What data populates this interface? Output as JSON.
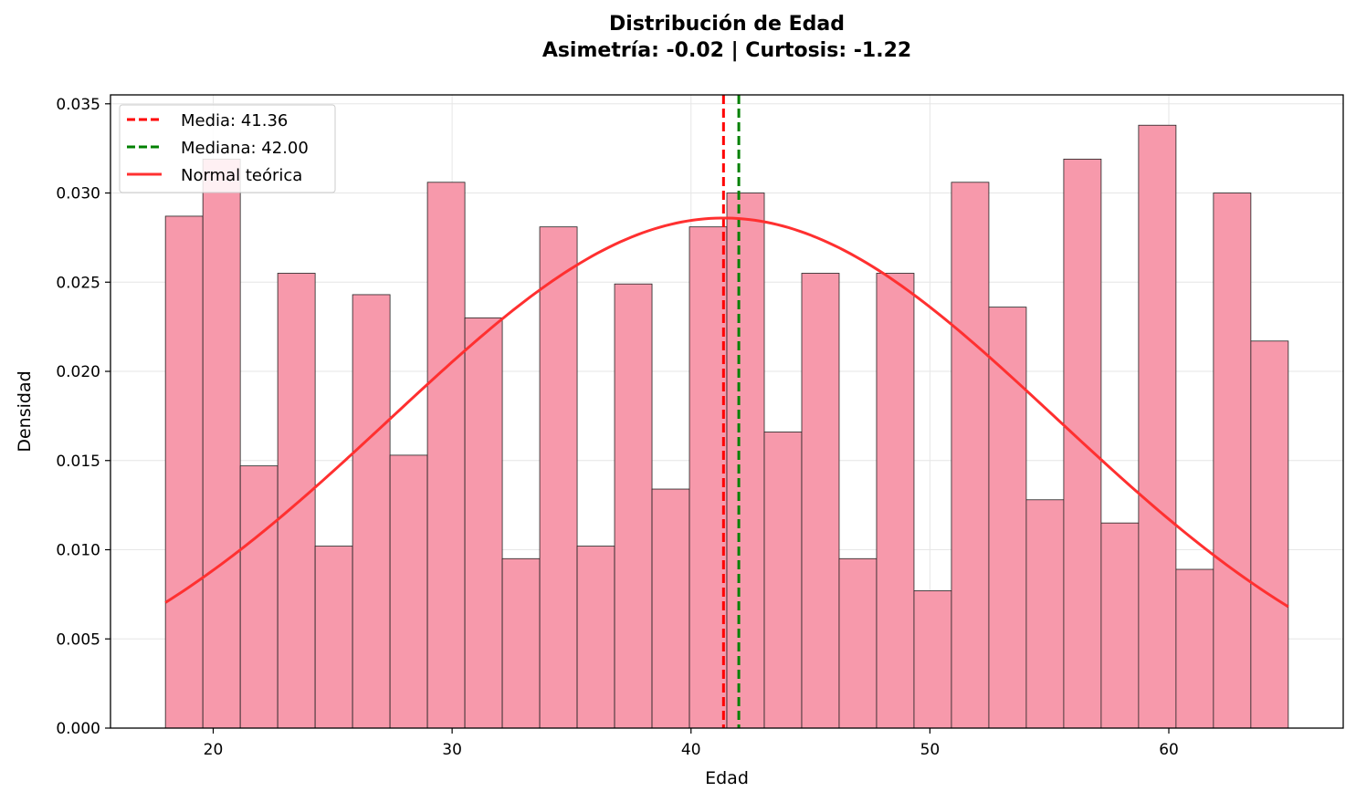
{
  "chart_data": {
    "type": "bar",
    "title": "Distribución de Edad",
    "subtitle": "Asimetría: -0.02 | Curtosis: -1.22",
    "xlabel": "Edad",
    "ylabel": "Densidad",
    "xlim": [
      15.7,
      67.3
    ],
    "ylim": [
      0,
      0.0355
    ],
    "xticks": [
      20,
      30,
      40,
      50,
      60
    ],
    "yticks": [
      0.0,
      0.005,
      0.01,
      0.015,
      0.02,
      0.025,
      0.03,
      0.035
    ],
    "ytick_labels": [
      "0.000",
      "0.005",
      "0.010",
      "0.015",
      "0.020",
      "0.025",
      "0.030",
      "0.035"
    ],
    "grid": true,
    "bar_color": "#f799ab",
    "bins": {
      "start": 18,
      "width": 1.5667,
      "values": [
        0.0287,
        0.0319,
        0.0147,
        0.0255,
        0.0102,
        0.0243,
        0.0153,
        0.0306,
        0.023,
        0.0095,
        0.0281,
        0.0102,
        0.0249,
        0.0134,
        0.0281,
        0.03,
        0.0166,
        0.0255,
        0.0095,
        0.0255,
        0.0077,
        0.0306,
        0.0236,
        0.0128,
        0.0319,
        0.0115,
        0.0338,
        0.0089,
        0.03,
        0.0217
      ]
    },
    "mean": {
      "value": 41.36,
      "label": "Media: 41.36",
      "color": "#ff0000"
    },
    "median": {
      "value": 42.0,
      "label": "Mediana: 42.00",
      "color": "#008000"
    },
    "normal_curve": {
      "label": "Normal teórica",
      "mu": 41.36,
      "sigma": 13.95,
      "x_range": [
        18,
        65
      ],
      "color": "#ff3030"
    },
    "legend_position": "top-left"
  }
}
